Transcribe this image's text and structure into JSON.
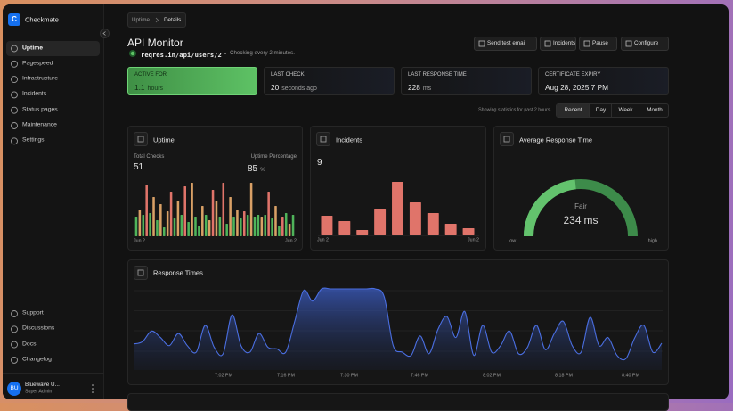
{
  "sidebar": {
    "logo": "C",
    "brand": "Checkmate",
    "nav": [
      "Uptime",
      "Pagespeed",
      "Infrastructure",
      "Incidents",
      "Status pages",
      "Maintenance",
      "Settings"
    ],
    "footer_nav": [
      "Support",
      "Discussions",
      "Docs",
      "Changelog"
    ],
    "user": {
      "initials": "BU",
      "name": "Bluewave U...",
      "role": "Super Admin"
    }
  },
  "breadcrumb": [
    "Uptime",
    "Details"
  ],
  "header": {
    "title": "API Monitor",
    "url": "reqres.in/api/users/2",
    "note": "Checking every 2 minutes."
  },
  "actions": [
    "Send test email",
    "Incidents",
    "Pause",
    "Configure"
  ],
  "stats": [
    {
      "label": "ACTIVE FOR",
      "value": 1.1,
      "unit": "hours"
    },
    {
      "label": "LAST CHECK",
      "value": 20,
      "unit": "seconds ago"
    },
    {
      "label": "LAST RESPONSE TIME",
      "value": 228,
      "unit": "ms"
    },
    {
      "label": "CERTIFICATE EXPIRY",
      "value": "Aug 28, 2025 7 PM"
    }
  ],
  "range_note": "Showing statistics for past 2 hours.",
  "ranges": [
    "Recent",
    "Day",
    "Week",
    "Month"
  ],
  "uptime": {
    "title": "Uptime",
    "total_label": "Total Checks",
    "total": 51,
    "pct_label": "Uptime Percentage",
    "pct": 85,
    "pct_unit": "%",
    "chart": {
      "type": "bar",
      "values": [
        22,
        30,
        24,
        58,
        26,
        44,
        18,
        36,
        10,
        28,
        50,
        20,
        40,
        24,
        56,
        16,
        60,
        22,
        12,
        34,
        24,
        18,
        52,
        40,
        22,
        60,
        14,
        44,
        22,
        30,
        20,
        28,
        24,
        60,
        22,
        24,
        22,
        24,
        50,
        20,
        34,
        12,
        22,
        26,
        14,
        24
      ],
      "colors": [
        "#4fb35a",
        "#d9a066",
        "#4fb35a",
        "#e0746a",
        "#4fb35a",
        "#d9a066",
        "#4fb35a",
        "#d9a066",
        "#4fb35a",
        "#d9a066",
        "#e0746a",
        "#4fb35a",
        "#d9a066",
        "#4fb35a",
        "#e0746a",
        "#4fb35a",
        "#d9a066",
        "#4fb35a",
        "#4fb35a",
        "#d9a066",
        "#4fb35a",
        "#d9a066",
        "#e0746a",
        "#d9a066",
        "#4fb35a",
        "#e0746a",
        "#4fb35a",
        "#d9a066",
        "#4fb35a",
        "#d9a066",
        "#4fb35a",
        "#e0746a",
        "#4fb35a",
        "#d9a066",
        "#4fb35a",
        "#4fb35a",
        "#d9a066",
        "#4fb35a",
        "#e0746a",
        "#4fb35a",
        "#d9a066",
        "#4fb35a",
        "#e0746a",
        "#4fb35a",
        "#d9a066",
        "#4fb35a"
      ],
      "ylim": [
        0,
        60
      ],
      "x_labels": [
        "Jun 2",
        "Jun 2"
      ]
    }
  },
  "incidents": {
    "title": "Incidents",
    "count": 9,
    "chart": {
      "type": "bar",
      "values": [
        22,
        16,
        6,
        30,
        60,
        37,
        25,
        13,
        8
      ],
      "color": "#e0746a",
      "ylim": [
        0,
        60
      ],
      "x_labels": [
        "Jun 2",
        "Jun 2"
      ]
    }
  },
  "average": {
    "title": "Average Response Time",
    "rating": "Fair",
    "value": 234,
    "unit": "ms",
    "range": [
      0,
      500
    ],
    "low": "low",
    "high": "high",
    "color": "#63c26d",
    "track_color": "#3d8b4a"
  },
  "response": {
    "title": "Response Times",
    "chart": {
      "type": "area",
      "color": "#4a6ee0",
      "ylim": [
        0,
        100
      ],
      "values": [
        32,
        35,
        48,
        40,
        30,
        45,
        30,
        22,
        55,
        28,
        20,
        68,
        30,
        22,
        45,
        28,
        26,
        22,
        60,
        98,
        85,
        100,
        100,
        100,
        100,
        100,
        100,
        100,
        90,
        30,
        22,
        18,
        42,
        20,
        50,
        66,
        40,
        72,
        18,
        55,
        22,
        30,
        48,
        20,
        28,
        55,
        25,
        45,
        60,
        30,
        22,
        65,
        30,
        40,
        18,
        14,
        40,
        55,
        22,
        33
      ],
      "x_labels": [
        "7:02 PM",
        "7:16 PM",
        "7:30 PM",
        "7:46 PM",
        "8:02 PM",
        "8:18 PM",
        "8:40 PM"
      ]
    }
  }
}
